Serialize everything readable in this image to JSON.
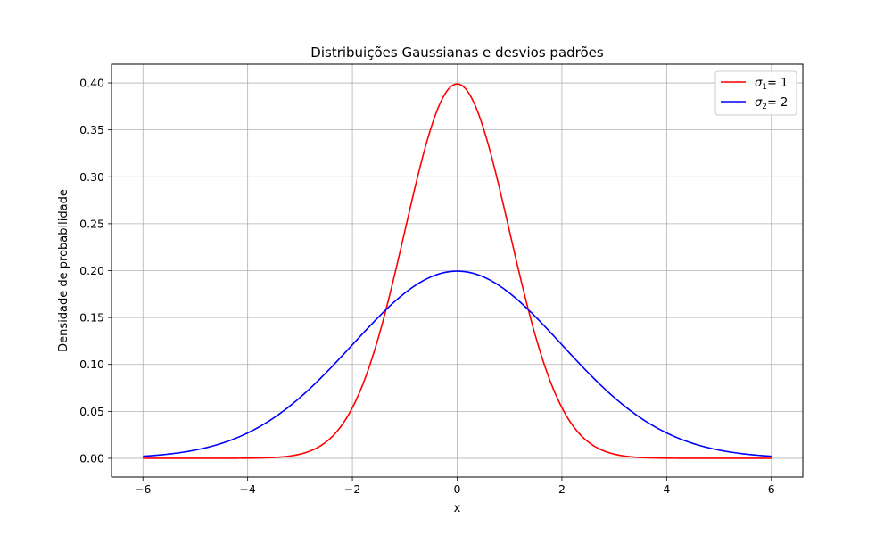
{
  "chart_data": {
    "type": "line",
    "title": "Distribuições Gaussianas e desvios padrões",
    "xlabel": "x",
    "ylabel": "Densidade de probabilidade",
    "xlim": [
      -6.6,
      6.6
    ],
    "ylim": [
      -0.02,
      0.42
    ],
    "xticks": [
      -6,
      -4,
      -2,
      0,
      2,
      4,
      6
    ],
    "xtick_labels": [
      "−6",
      "−4",
      "−2",
      "0",
      "2",
      "4",
      "6"
    ],
    "yticks": [
      0.0,
      0.05,
      0.1,
      0.15,
      0.2,
      0.25,
      0.3,
      0.35,
      0.4
    ],
    "ytick_labels": [
      "0.00",
      "0.05",
      "0.10",
      "0.15",
      "0.20",
      "0.25",
      "0.30",
      "0.35",
      "0.40"
    ],
    "grid": true,
    "legend_position": "top-right",
    "x_range": [
      -6,
      6
    ],
    "series": [
      {
        "name_symbol": "σ",
        "name_sub": "1",
        "name_suffix": "= 1",
        "mean": 0,
        "sigma": 1,
        "color": "#ff0000"
      },
      {
        "name_symbol": "σ",
        "name_sub": "2",
        "name_suffix": "= 2",
        "mean": 0,
        "sigma": 2,
        "color": "#0000ff"
      }
    ]
  }
}
